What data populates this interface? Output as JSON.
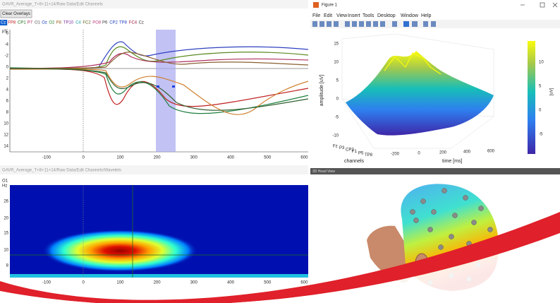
{
  "erp_panel": {
    "title": "GAVR_Average_T+8+11+14/Raw Data/Edit Channels",
    "button": "Clear Overlays",
    "channels": [
      "Cz",
      "FP8",
      "CP1",
      "P7",
      "O1",
      "Oz",
      "O2",
      "P8",
      "TP10",
      "C4",
      "FC2",
      "PO8",
      "P6",
      "CP2",
      "TP8",
      "FC4",
      "Cz"
    ],
    "unit": "µV",
    "yticks": [
      "-6",
      "-4",
      "-2",
      "0",
      "2",
      "4",
      "6",
      "8",
      "10",
      "12",
      "14"
    ],
    "xticks": [
      "-100",
      "0",
      "100",
      "200",
      "300",
      "400",
      "500",
      "600"
    ]
  },
  "wavelet_panel": {
    "title": "GAVR_Average_T+8+11+14/Raw Data/Edit Channels/Wavelets",
    "channel": "O1",
    "unit": "Hz",
    "yticks": [
      "26",
      "20",
      "15",
      "10",
      "8"
    ],
    "xticks": [
      "-100",
      "0",
      "100",
      "200",
      "300",
      "400",
      "500",
      "600"
    ]
  },
  "figure_window": {
    "title": "Figure 1",
    "menu": [
      "File",
      "Edit",
      "View",
      "Insert",
      "Tools",
      "Desktop",
      "Window",
      "Help"
    ],
    "zlabel": "amplitude [uV]",
    "zticks": [
      "15",
      "10",
      "5",
      "0",
      "-5",
      "-10"
    ],
    "channel_ticks": [
      "Fz",
      "P3",
      "CP2",
      "F1",
      "P5",
      "TP8"
    ],
    "channel_label": "channels",
    "time_ticks": [
      "-200",
      "0",
      "200",
      "400",
      "600"
    ],
    "time_label": "time [ms]",
    "colorbar_ticks": [
      "10",
      "5",
      "0",
      "-5"
    ],
    "colorbar_label": "[uV]"
  },
  "head_panel": {
    "title": "3D Head View"
  }
}
